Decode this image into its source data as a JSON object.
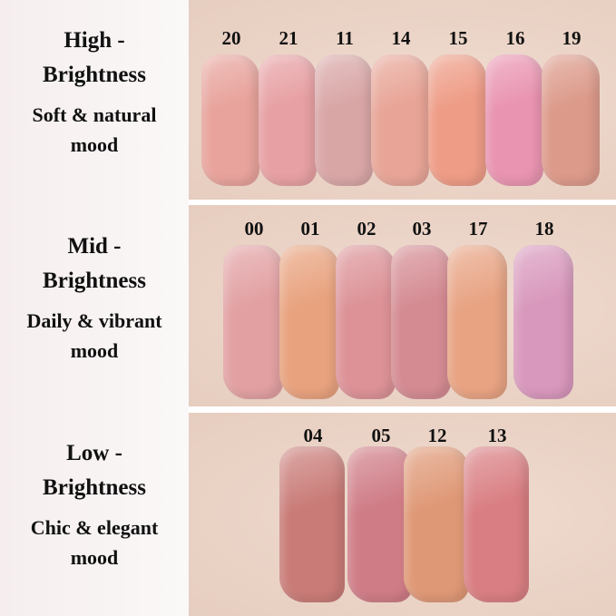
{
  "groups": [
    {
      "title1": "High -",
      "title2": "Brightness",
      "mood1": "Soft & natural",
      "mood2": "mood",
      "shades": [
        {
          "code": "20",
          "color": "#e8a39c"
        },
        {
          "code": "21",
          "color": "#e7a0a3"
        },
        {
          "code": "11",
          "color": "#d9a6a6"
        },
        {
          "code": "14",
          "color": "#e8a597"
        },
        {
          "code": "15",
          "color": "#ee9c86"
        },
        {
          "code": "16",
          "color": "#e994b0"
        },
        {
          "code": "19",
          "color": "#dc9a8a"
        }
      ]
    },
    {
      "title1": "Mid -",
      "title2": "Brightness",
      "mood1": "Daily & vibrant",
      "mood2": "mood",
      "shades": [
        {
          "code": "00",
          "color": "#e2a0a2"
        },
        {
          "code": "01",
          "color": "#e8a27e"
        },
        {
          "code": "02",
          "color": "#dc9297"
        },
        {
          "code": "03",
          "color": "#d48b92"
        },
        {
          "code": "17",
          "color": "#e8a383"
        },
        {
          "code": "18",
          "color": "#d897bc"
        }
      ]
    },
    {
      "title1": "Low -",
      "title2": "Brightness",
      "mood1": "Chic & elegant",
      "mood2": "mood",
      "shades": [
        {
          "code": "04",
          "color": "#c97b77"
        },
        {
          "code": "05",
          "color": "#cf7c86"
        },
        {
          "code": "12",
          "color": "#df9876"
        },
        {
          "code": "13",
          "color": "#d97e82"
        }
      ]
    }
  ]
}
